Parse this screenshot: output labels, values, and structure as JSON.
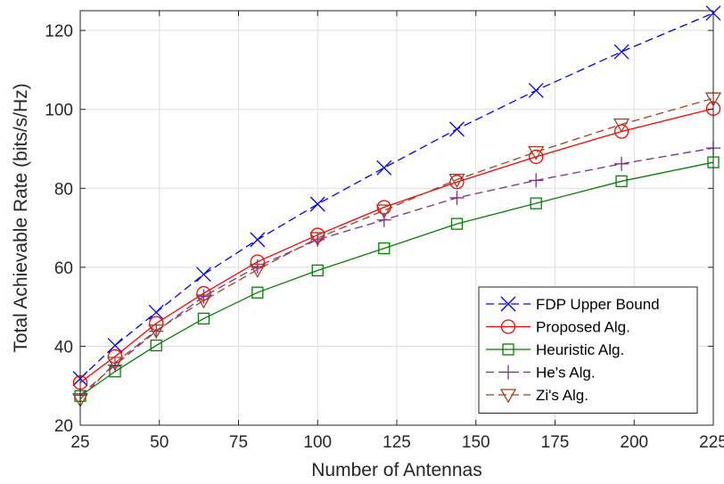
{
  "chart_data": {
    "type": "line",
    "title": "",
    "xlabel": "Number of Antennas",
    "ylabel": "Total Achievable Rate (bits/s/Hz)",
    "xlim": [
      25,
      225
    ],
    "ylim": [
      20,
      125
    ],
    "xticks": [
      25,
      50,
      75,
      100,
      125,
      150,
      175,
      200,
      225
    ],
    "yticks": [
      20,
      40,
      60,
      80,
      100,
      120
    ],
    "grid": true,
    "legend_position": "bottom-right",
    "x": [
      25,
      36,
      49,
      64,
      81,
      100,
      121,
      144,
      169,
      196,
      225
    ],
    "series": [
      {
        "name": "FDP Upper Bound",
        "color": "#0000ff",
        "line_style": "dashed",
        "marker": "x",
        "values": [
          31.8,
          40.2,
          48.6,
          58.2,
          67.0,
          76.0,
          85.2,
          95.0,
          104.8,
          114.6,
          124.4
        ]
      },
      {
        "name": "Proposed Alg.",
        "color": "#ff0000",
        "line_style": "solid",
        "marker": "circle",
        "values": [
          30.8,
          37.4,
          45.8,
          53.4,
          61.4,
          68.2,
          75.2,
          81.6,
          88.0,
          94.4,
          100.2
        ]
      },
      {
        "name": "Heuristic Alg.",
        "color": "#008000",
        "line_style": "solid",
        "marker": "square",
        "values": [
          27.4,
          33.6,
          40.2,
          47.0,
          53.6,
          59.2,
          64.8,
          71.0,
          76.2,
          81.8,
          86.6
        ]
      },
      {
        "name": "He's Alg.",
        "color": "#7e2f8e",
        "line_style": "dashed",
        "marker": "plus",
        "values": [
          27.6,
          35.2,
          43.8,
          52.6,
          60.2,
          67.0,
          72.0,
          77.6,
          82.0,
          86.2,
          90.2
        ]
      },
      {
        "name": "Zi's Alg.",
        "color": "#a2421e",
        "line_style": "dashed",
        "marker": "triangle-down",
        "values": [
          26.6,
          35.8,
          44.0,
          51.6,
          59.4,
          67.4,
          74.4,
          82.2,
          89.2,
          96.2,
          102.8
        ]
      }
    ]
  }
}
